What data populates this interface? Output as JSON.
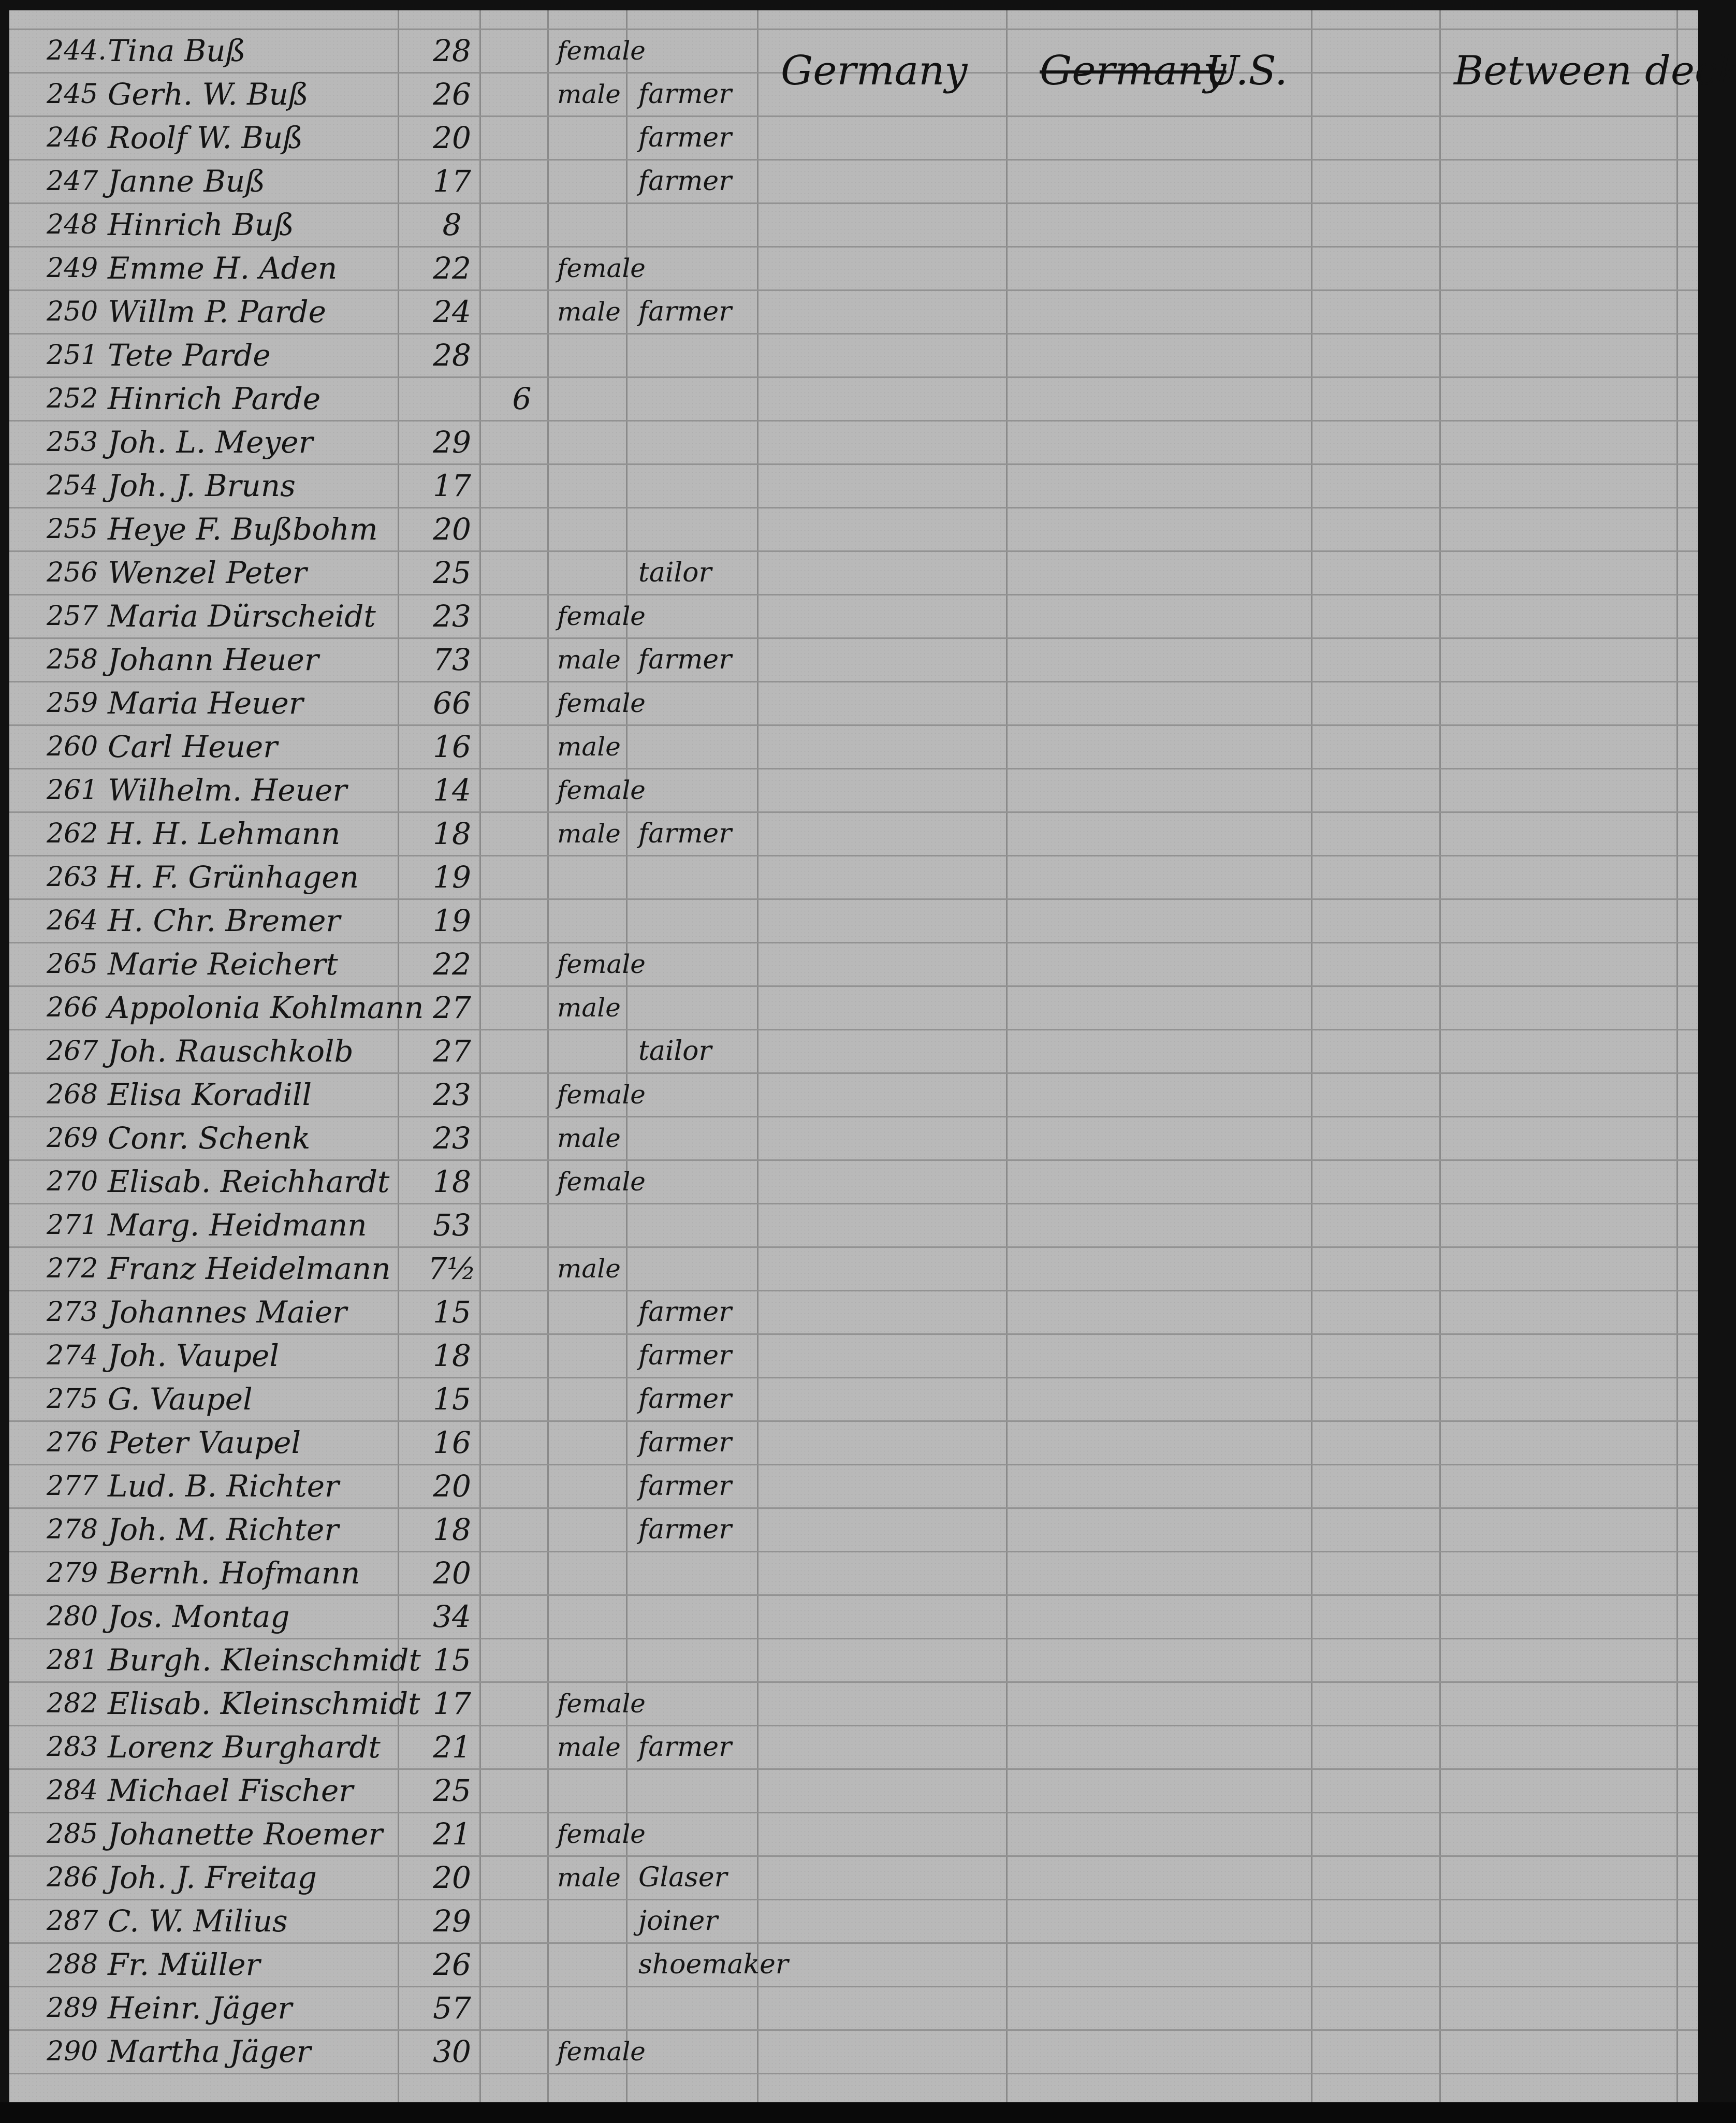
{
  "document": {
    "country": "Germany",
    "destination_struck": "Germany",
    "destination": "U.S.",
    "accommodation": "Between deck"
  },
  "entries": [
    {
      "num": "244.",
      "name": "Tina Buß",
      "age": "28",
      "child": "",
      "sex": "female",
      "occupation": ""
    },
    {
      "num": "245",
      "name": "Gerh. W. Buß",
      "age": "26",
      "child": "",
      "sex": "male",
      "occupation": "farmer"
    },
    {
      "num": "246",
      "name": "Roolf W. Buß",
      "age": "20",
      "child": "",
      "sex": "",
      "occupation": "farmer"
    },
    {
      "num": "247",
      "name": "Janne Buß",
      "age": "17",
      "child": "",
      "sex": "",
      "occupation": "farmer"
    },
    {
      "num": "248",
      "name": "Hinrich Buß",
      "age": "8",
      "child": "",
      "sex": "",
      "occupation": ""
    },
    {
      "num": "249",
      "name": "Emme H. Aden",
      "age": "22",
      "child": "",
      "sex": "female",
      "occupation": ""
    },
    {
      "num": "250",
      "name": "Willm P. Parde",
      "age": "24",
      "child": "",
      "sex": "male",
      "occupation": "farmer"
    },
    {
      "num": "251",
      "name": "Tete Parde",
      "age": "28",
      "child": "",
      "sex": "",
      "occupation": ""
    },
    {
      "num": "252",
      "name": "Hinrich Parde",
      "age": "",
      "child": "6",
      "sex": "",
      "occupation": ""
    },
    {
      "num": "253",
      "name": "Joh. L. Meyer",
      "age": "29",
      "child": "",
      "sex": "",
      "occupation": ""
    },
    {
      "num": "254",
      "name": "Joh. J. Bruns",
      "age": "17",
      "child": "",
      "sex": "",
      "occupation": ""
    },
    {
      "num": "255",
      "name": "Heye F. Bußbohm",
      "age": "20",
      "child": "",
      "sex": "",
      "occupation": ""
    },
    {
      "num": "256",
      "name": "Wenzel Peter",
      "age": "25",
      "child": "",
      "sex": "",
      "occupation": "tailor"
    },
    {
      "num": "257",
      "name": "Maria Dürscheidt",
      "age": "23",
      "child": "",
      "sex": "female",
      "occupation": ""
    },
    {
      "num": "258",
      "name": "Johann Heuer",
      "age": "73",
      "child": "",
      "sex": "male",
      "occupation": "farmer"
    },
    {
      "num": "259",
      "name": "Maria Heuer",
      "age": "66",
      "child": "",
      "sex": "female",
      "occupation": ""
    },
    {
      "num": "260",
      "name": "Carl Heuer",
      "age": "16",
      "child": "",
      "sex": "male",
      "occupation": ""
    },
    {
      "num": "261",
      "name": "Wilhelm. Heuer",
      "age": "14",
      "child": "",
      "sex": "female",
      "occupation": ""
    },
    {
      "num": "262",
      "name": "H. H. Lehmann",
      "age": "18",
      "child": "",
      "sex": "male",
      "occupation": "farmer"
    },
    {
      "num": "263",
      "name": "H. F. Grünhagen",
      "age": "19",
      "child": "",
      "sex": "",
      "occupation": ""
    },
    {
      "num": "264",
      "name": "H. Chr. Bremer",
      "age": "19",
      "child": "",
      "sex": "",
      "occupation": ""
    },
    {
      "num": "265",
      "name": "Marie Reichert",
      "age": "22",
      "child": "",
      "sex": "female",
      "occupation": ""
    },
    {
      "num": "266",
      "name": "Appolonia Kohlmann",
      "age": "27",
      "child": "",
      "sex": "male",
      "occupation": ""
    },
    {
      "num": "267",
      "name": "Joh. Rauschkolb",
      "age": "27",
      "child": "",
      "sex": "",
      "occupation": "tailor"
    },
    {
      "num": "268",
      "name": "Elisa Koradill",
      "age": "23",
      "child": "",
      "sex": "female",
      "occupation": ""
    },
    {
      "num": "269",
      "name": "Conr. Schenk",
      "age": "23",
      "child": "",
      "sex": "male",
      "occupation": ""
    },
    {
      "num": "270",
      "name": "Elisab. Reichhardt",
      "age": "18",
      "child": "",
      "sex": "female",
      "occupation": ""
    },
    {
      "num": "271",
      "name": "Marg. Heidmann",
      "age": "53",
      "child": "",
      "sex": "",
      "occupation": ""
    },
    {
      "num": "272",
      "name": "Franz Heidelmann",
      "age": "7½",
      "child": "",
      "sex": "male",
      "occupation": ""
    },
    {
      "num": "273",
      "name": "Johannes Maier",
      "age": "15",
      "child": "",
      "sex": "",
      "occupation": "farmer"
    },
    {
      "num": "274",
      "name": "Joh. Vaupel",
      "age": "18",
      "child": "",
      "sex": "",
      "occupation": "farmer"
    },
    {
      "num": "275",
      "name": "G. Vaupel",
      "age": "15",
      "child": "",
      "sex": "",
      "occupation": "farmer"
    },
    {
      "num": "276",
      "name": "Peter Vaupel",
      "age": "16",
      "child": "",
      "sex": "",
      "occupation": "farmer"
    },
    {
      "num": "277",
      "name": "Lud. B. Richter",
      "age": "20",
      "child": "",
      "sex": "",
      "occupation": "farmer"
    },
    {
      "num": "278",
      "name": "Joh. M. Richter",
      "age": "18",
      "child": "",
      "sex": "",
      "occupation": "farmer"
    },
    {
      "num": "279",
      "name": "Bernh. Hofmann",
      "age": "20",
      "child": "",
      "sex": "",
      "occupation": ""
    },
    {
      "num": "280",
      "name": "Jos. Montag",
      "age": "34",
      "child": "",
      "sex": "",
      "occupation": ""
    },
    {
      "num": "281",
      "name": "Burgh. Kleinschmidt",
      "age": "15",
      "child": "",
      "sex": "",
      "occupation": ""
    },
    {
      "num": "282",
      "name": "Elisab. Kleinschmidt",
      "age": "17",
      "child": "",
      "sex": "female",
      "occupation": ""
    },
    {
      "num": "283",
      "name": "Lorenz Burghardt",
      "age": "21",
      "child": "",
      "sex": "male",
      "occupation": "farmer"
    },
    {
      "num": "284",
      "name": "Michael Fischer",
      "age": "25",
      "child": "",
      "sex": "",
      "occupation": ""
    },
    {
      "num": "285",
      "name": "Johanette Roemer",
      "age": "21",
      "child": "",
      "sex": "female",
      "occupation": ""
    },
    {
      "num": "286",
      "name": "Joh. J. Freitag",
      "age": "20",
      "child": "",
      "sex": "male",
      "occupation": "Glaser"
    },
    {
      "num": "287",
      "name": "C. W. Milius",
      "age": "29",
      "child": "",
      "sex": "",
      "occupation": "joiner"
    },
    {
      "num": "288",
      "name": "Fr. Müller",
      "age": "26",
      "child": "",
      "sex": "",
      "occupation": "shoemaker"
    },
    {
      "num": "289",
      "name": "Heinr. Jäger",
      "age": "57",
      "child": "",
      "sex": "",
      "occupation": ""
    },
    {
      "num": "290",
      "name": "Martha Jäger",
      "age": "30",
      "child": "",
      "sex": "female",
      "occupation": ""
    }
  ]
}
